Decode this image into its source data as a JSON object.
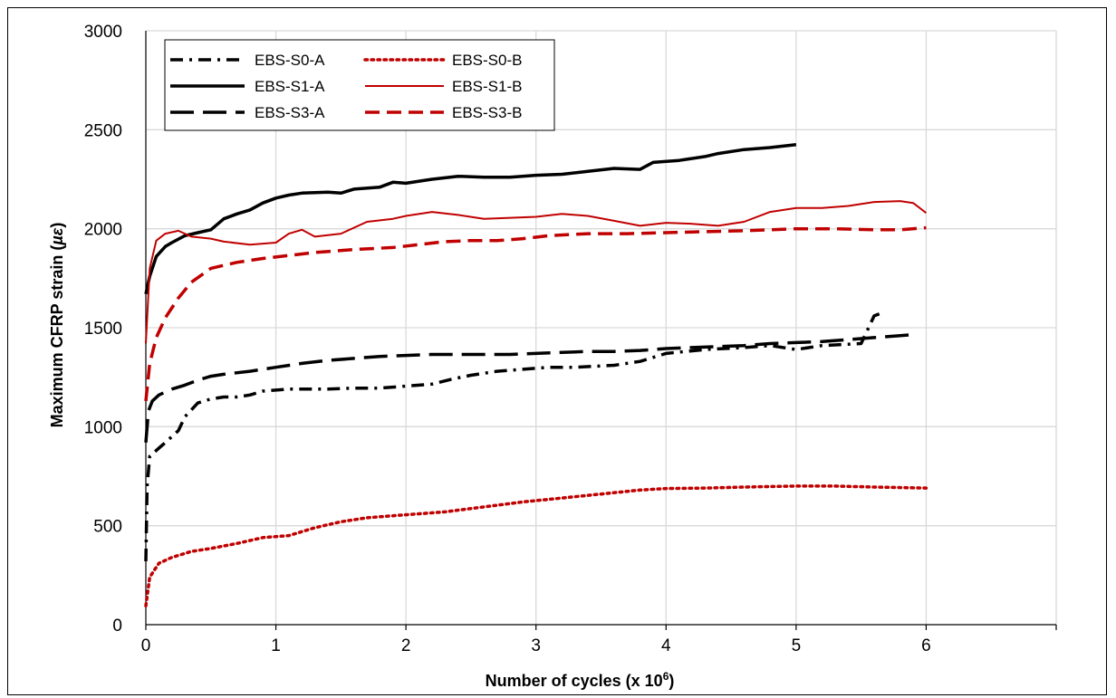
{
  "chart_data": {
    "type": "line",
    "xlabel": "Number of cycles (x 10",
    "xlabel_sup": "6",
    "xlabel_close": ")",
    "ylabel": "Maximum CFRP strain (",
    "ylabel_unit": "µε",
    "ylabel_close": ")",
    "xlim": [
      0,
      7
    ],
    "ylim": [
      0,
      3000
    ],
    "xticks": [
      0,
      1,
      2,
      3,
      4,
      5,
      6
    ],
    "yticks": [
      0,
      500,
      1000,
      1500,
      2000,
      2500,
      3000
    ],
    "grid": true,
    "legend": "top-left",
    "series": [
      {
        "name": "EBS-S0-A",
        "color": "#000000",
        "dash": "dashdot",
        "width": 3.5,
        "points": [
          [
            0,
            320
          ],
          [
            0.01,
            700
          ],
          [
            0.03,
            850
          ],
          [
            0.08,
            880
          ],
          [
            0.15,
            920
          ],
          [
            0.25,
            980
          ],
          [
            0.3,
            1050
          ],
          [
            0.4,
            1120
          ],
          [
            0.5,
            1140
          ],
          [
            0.6,
            1150
          ],
          [
            0.7,
            1150
          ],
          [
            0.8,
            1160
          ],
          [
            0.9,
            1180
          ],
          [
            1.0,
            1185
          ],
          [
            1.1,
            1190
          ],
          [
            1.2,
            1190
          ],
          [
            1.4,
            1190
          ],
          [
            1.6,
            1195
          ],
          [
            1.8,
            1195
          ],
          [
            2.0,
            1205
          ],
          [
            2.2,
            1215
          ],
          [
            2.35,
            1240
          ],
          [
            2.5,
            1260
          ],
          [
            2.7,
            1280
          ],
          [
            2.9,
            1290
          ],
          [
            3.1,
            1300
          ],
          [
            3.3,
            1300
          ],
          [
            3.6,
            1310
          ],
          [
            3.8,
            1330
          ],
          [
            4.0,
            1370
          ],
          [
            4.3,
            1390
          ],
          [
            4.6,
            1400
          ],
          [
            4.8,
            1410
          ],
          [
            5.0,
            1390
          ],
          [
            5.2,
            1410
          ],
          [
            5.5,
            1420
          ],
          [
            5.55,
            1490
          ],
          [
            5.6,
            1560
          ],
          [
            5.64,
            1570
          ]
        ]
      },
      {
        "name": "EBS-S0-B",
        "color": "#c00000",
        "dash": "dot",
        "width": 3.5,
        "points": [
          [
            0,
            95
          ],
          [
            0.03,
            240
          ],
          [
            0.1,
            310
          ],
          [
            0.2,
            340
          ],
          [
            0.35,
            370
          ],
          [
            0.5,
            385
          ],
          [
            0.7,
            410
          ],
          [
            0.9,
            440
          ],
          [
            1.1,
            450
          ],
          [
            1.3,
            490
          ],
          [
            1.5,
            520
          ],
          [
            1.7,
            540
          ],
          [
            2.0,
            555
          ],
          [
            2.3,
            570
          ],
          [
            2.6,
            595
          ],
          [
            2.9,
            620
          ],
          [
            3.2,
            640
          ],
          [
            3.5,
            660
          ],
          [
            3.8,
            680
          ],
          [
            4.0,
            688
          ],
          [
            4.3,
            690
          ],
          [
            4.6,
            695
          ],
          [
            5.0,
            700
          ],
          [
            5.3,
            700
          ],
          [
            5.6,
            695
          ],
          [
            6.0,
            690
          ]
        ]
      },
      {
        "name": "EBS-S1-A",
        "color": "#000000",
        "dash": "solid",
        "width": 3.5,
        "points": [
          [
            0,
            1670
          ],
          [
            0.03,
            1760
          ],
          [
            0.08,
            1860
          ],
          [
            0.15,
            1910
          ],
          [
            0.2,
            1930
          ],
          [
            0.3,
            1965
          ],
          [
            0.4,
            1980
          ],
          [
            0.5,
            1995
          ],
          [
            0.6,
            2050
          ],
          [
            0.7,
            2075
          ],
          [
            0.8,
            2095
          ],
          [
            0.9,
            2130
          ],
          [
            1.0,
            2155
          ],
          [
            1.1,
            2170
          ],
          [
            1.2,
            2180
          ],
          [
            1.4,
            2185
          ],
          [
            1.5,
            2180
          ],
          [
            1.6,
            2200
          ],
          [
            1.8,
            2210
          ],
          [
            1.9,
            2235
          ],
          [
            2.0,
            2230
          ],
          [
            2.2,
            2250
          ],
          [
            2.4,
            2265
          ],
          [
            2.6,
            2260
          ],
          [
            2.8,
            2260
          ],
          [
            3.0,
            2270
          ],
          [
            3.2,
            2275
          ],
          [
            3.4,
            2290
          ],
          [
            3.6,
            2305
          ],
          [
            3.8,
            2300
          ],
          [
            3.9,
            2335
          ],
          [
            4.1,
            2345
          ],
          [
            4.3,
            2365
          ],
          [
            4.4,
            2380
          ],
          [
            4.6,
            2400
          ],
          [
            4.8,
            2410
          ],
          [
            5.0,
            2425
          ]
        ]
      },
      {
        "name": "EBS-S1-B",
        "color": "#c00000",
        "dash": "solid",
        "width": 2,
        "points": [
          [
            0,
            1420
          ],
          [
            0.03,
            1800
          ],
          [
            0.08,
            1940
          ],
          [
            0.15,
            1975
          ],
          [
            0.25,
            1990
          ],
          [
            0.35,
            1960
          ],
          [
            0.5,
            1950
          ],
          [
            0.6,
            1935
          ],
          [
            0.8,
            1920
          ],
          [
            1.0,
            1930
          ],
          [
            1.1,
            1975
          ],
          [
            1.2,
            1995
          ],
          [
            1.3,
            1960
          ],
          [
            1.5,
            1975
          ],
          [
            1.7,
            2035
          ],
          [
            1.9,
            2050
          ],
          [
            2.0,
            2065
          ],
          [
            2.2,
            2085
          ],
          [
            2.4,
            2070
          ],
          [
            2.6,
            2050
          ],
          [
            2.8,
            2055
          ],
          [
            3.0,
            2060
          ],
          [
            3.2,
            2075
          ],
          [
            3.4,
            2065
          ],
          [
            3.6,
            2040
          ],
          [
            3.8,
            2015
          ],
          [
            4.0,
            2030
          ],
          [
            4.2,
            2025
          ],
          [
            4.4,
            2015
          ],
          [
            4.6,
            2035
          ],
          [
            4.8,
            2085
          ],
          [
            5.0,
            2105
          ],
          [
            5.2,
            2105
          ],
          [
            5.4,
            2115
          ],
          [
            5.6,
            2135
          ],
          [
            5.8,
            2140
          ],
          [
            5.9,
            2130
          ],
          [
            6.0,
            2080
          ]
        ]
      },
      {
        "name": "EBS-S3-A",
        "color": "#000000",
        "dash": "longdash",
        "width": 3.5,
        "points": [
          [
            0,
            920
          ],
          [
            0.02,
            1080
          ],
          [
            0.05,
            1130
          ],
          [
            0.1,
            1160
          ],
          [
            0.2,
            1190
          ],
          [
            0.3,
            1210
          ],
          [
            0.4,
            1235
          ],
          [
            0.5,
            1255
          ],
          [
            0.6,
            1265
          ],
          [
            0.8,
            1280
          ],
          [
            0.9,
            1290
          ],
          [
            1.0,
            1300
          ],
          [
            1.2,
            1320
          ],
          [
            1.4,
            1335
          ],
          [
            1.6,
            1345
          ],
          [
            1.8,
            1355
          ],
          [
            2.0,
            1360
          ],
          [
            2.2,
            1365
          ],
          [
            2.4,
            1365
          ],
          [
            2.6,
            1365
          ],
          [
            2.8,
            1365
          ],
          [
            3.0,
            1370
          ],
          [
            3.2,
            1375
          ],
          [
            3.4,
            1380
          ],
          [
            3.6,
            1380
          ],
          [
            3.8,
            1385
          ],
          [
            4.0,
            1395
          ],
          [
            4.2,
            1400
          ],
          [
            4.4,
            1405
          ],
          [
            4.6,
            1410
          ],
          [
            4.8,
            1420
          ],
          [
            5.0,
            1425
          ],
          [
            5.2,
            1430
          ],
          [
            5.4,
            1440
          ],
          [
            5.6,
            1450
          ],
          [
            5.8,
            1460
          ],
          [
            5.9,
            1465
          ]
        ]
      },
      {
        "name": "EBS-S3-B",
        "color": "#c00000",
        "dash": "dash",
        "width": 3.5,
        "points": [
          [
            0,
            1130
          ],
          [
            0.03,
            1320
          ],
          [
            0.08,
            1450
          ],
          [
            0.15,
            1550
          ],
          [
            0.25,
            1650
          ],
          [
            0.35,
            1730
          ],
          [
            0.5,
            1800
          ],
          [
            0.7,
            1830
          ],
          [
            0.9,
            1850
          ],
          [
            1.1,
            1865
          ],
          [
            1.3,
            1880
          ],
          [
            1.6,
            1895
          ],
          [
            1.9,
            1905
          ],
          [
            2.1,
            1920
          ],
          [
            2.3,
            1935
          ],
          [
            2.5,
            1940
          ],
          [
            2.7,
            1940
          ],
          [
            2.9,
            1950
          ],
          [
            3.1,
            1965
          ],
          [
            3.4,
            1975
          ],
          [
            3.7,
            1975
          ],
          [
            4.0,
            1980
          ],
          [
            4.3,
            1985
          ],
          [
            4.6,
            1990
          ],
          [
            5.0,
            2000
          ],
          [
            5.3,
            2000
          ],
          [
            5.6,
            1995
          ],
          [
            5.8,
            1995
          ],
          [
            6.0,
            2005
          ]
        ]
      }
    ]
  }
}
